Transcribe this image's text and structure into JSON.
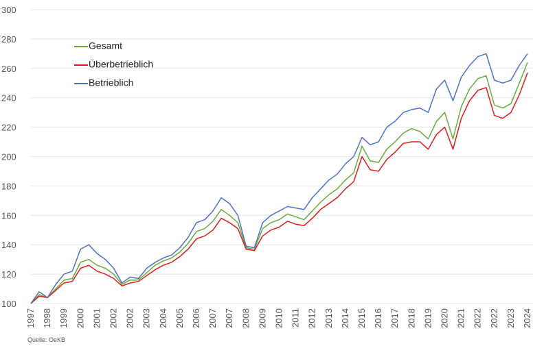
{
  "chart_data": {
    "type": "line",
    "source": "Quelle: OeKB",
    "categories": [
      "1997",
      null,
      "1998",
      null,
      "1999",
      null,
      "2000",
      null,
      "2001",
      null,
      "2002",
      null,
      "2002",
      null,
      "2003",
      null,
      "2004",
      null,
      "2005",
      null,
      "2006",
      null,
      "2007",
      null,
      "2007",
      null,
      "2008",
      null,
      "2009",
      null,
      "2010",
      null,
      "2011",
      null,
      "2012",
      null,
      "2013",
      null,
      "2014",
      null,
      "2015",
      null,
      "2016",
      null,
      "2017",
      null,
      "2018",
      null,
      "2019",
      null,
      "2020",
      null,
      "2021",
      null,
      "2022",
      null,
      "2022",
      null,
      "2023",
      null,
      "2024"
    ],
    "series": [
      {
        "name": "Gesamt",
        "color": "#6aaa3c",
        "values": [
          100,
          106,
          104,
          110,
          116,
          117,
          128,
          130,
          126,
          124,
          120,
          113,
          116,
          116,
          121,
          126,
          129,
          131,
          135,
          141,
          149,
          151,
          156,
          164,
          160,
          155,
          138,
          137,
          151,
          155,
          157,
          161,
          159,
          157,
          163,
          169,
          174,
          178,
          184,
          189,
          207,
          197,
          196,
          205,
          210,
          216,
          219,
          217,
          212,
          224,
          230,
          212,
          234,
          246,
          253,
          255,
          235,
          233,
          236,
          250,
          264
        ]
      },
      {
        "name": "Überbetrieblich",
        "color": "#e01a1a",
        "values": [
          100,
          105,
          104,
          109,
          114,
          115,
          124,
          126,
          122,
          120,
          117,
          112,
          114,
          115,
          119,
          123,
          126,
          128,
          132,
          137,
          144,
          146,
          150,
          158,
          155,
          151,
          137,
          136,
          146,
          150,
          152,
          156,
          154,
          153,
          158,
          164,
          168,
          172,
          178,
          183,
          200,
          191,
          190,
          198,
          203,
          209,
          210,
          210,
          205,
          215,
          220,
          205,
          226,
          238,
          245,
          247,
          228,
          226,
          230,
          242,
          257
        ]
      },
      {
        "name": "Betrieblich",
        "color": "#4a72c0",
        "values": [
          100,
          108,
          104,
          113,
          120,
          122,
          137,
          140,
          134,
          130,
          124,
          114,
          118,
          117,
          124,
          128,
          131,
          133,
          138,
          145,
          155,
          157,
          163,
          172,
          168,
          160,
          139,
          138,
          155,
          160,
          163,
          166,
          165,
          164,
          172,
          178,
          184,
          188,
          195,
          200,
          213,
          208,
          210,
          220,
          224,
          230,
          232,
          233,
          230,
          246,
          252,
          238,
          254,
          262,
          268,
          270,
          252,
          250,
          252,
          262,
          270
        ]
      }
    ],
    "ylim": [
      100,
      300
    ],
    "yticks": [
      100,
      120,
      140,
      160,
      180,
      200,
      220,
      240,
      260,
      280,
      300
    ],
    "grid": true,
    "legend": "top-left"
  }
}
